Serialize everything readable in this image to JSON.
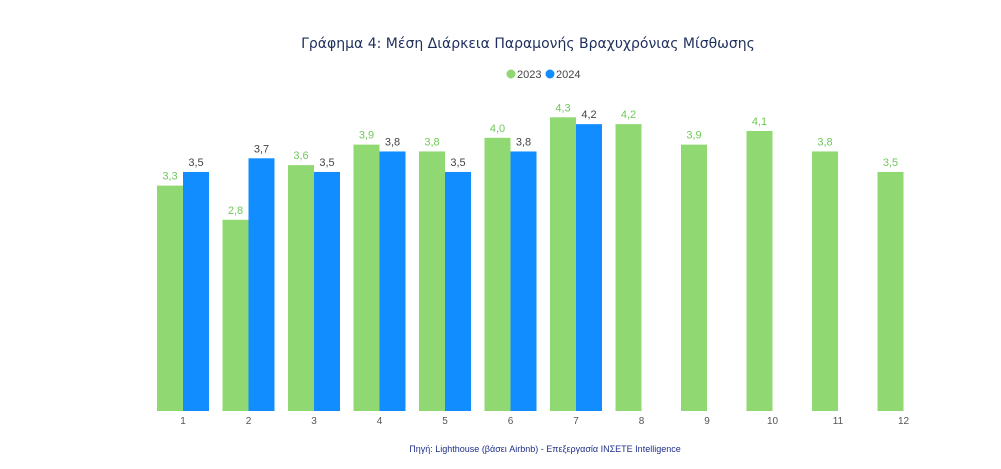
{
  "chart_data": {
    "type": "bar",
    "title": "Γράφημα 4: Μέση Διάρκεια Παραμονής Βραχυχρόνιας Μίσθωσης",
    "source": "Πηγή: Lighthouse (βάσει Airbnb) - Επεξεργασία ΙΝΣΕΤΕ Intelligence",
    "categories": [
      "1",
      "2",
      "3",
      "4",
      "5",
      "6",
      "7",
      "8",
      "9",
      "10",
      "11",
      "12"
    ],
    "series": [
      {
        "name": "2023",
        "color": "#8fd872",
        "values": [
          3.3,
          2.8,
          3.6,
          3.9,
          3.8,
          4.0,
          4.3,
          4.2,
          3.9,
          4.1,
          3.8,
          3.5
        ],
        "labels": [
          "3,3",
          "2,8",
          "3,6",
          "3,9",
          "3,8",
          "4,0",
          "4,3",
          "4,2",
          "3,9",
          "4,1",
          "3,8",
          "3,5"
        ]
      },
      {
        "name": "2024",
        "color": "#118dff",
        "values": [
          3.5,
          3.7,
          3.5,
          3.8,
          3.5,
          3.8,
          4.2,
          null,
          null,
          null,
          null,
          null
        ],
        "labels": [
          "3,5",
          "3,7",
          "3,5",
          "3,8",
          "3,5",
          "3,8",
          "4,2",
          null,
          null,
          null,
          null,
          null
        ]
      }
    ],
    "legend_position": "top-center",
    "grid": false,
    "ylim": [
      0,
      4.5
    ]
  }
}
